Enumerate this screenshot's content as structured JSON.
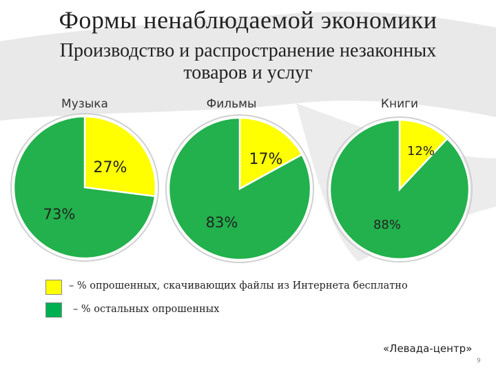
{
  "slide": {
    "title": "Формы ненаблюдаемой экономики",
    "subtitle": "Производство и распространение незаконных товаров и услуг",
    "source": "«Левада-центр»",
    "page_number": "9"
  },
  "legend": [
    {
      "label": "– % опрошенных, скачивающих файлы из Интернета бесплатно",
      "color": "#ffff00"
    },
    {
      "label": "– % остальных опрошенных",
      "color": "#00b050"
    }
  ],
  "colors": {
    "download": "#ffff00",
    "other": "#22b14c",
    "outline": "#ffffff"
  },
  "chart_data": [
    {
      "type": "pie",
      "title": "Музыка",
      "categories": [
        "скачивающие бесплатно",
        "остальные"
      ],
      "values": [
        27,
        73
      ],
      "labels": [
        "27%",
        "73%"
      ]
    },
    {
      "type": "pie",
      "title": "Фильмы",
      "categories": [
        "скачивающие бесплатно",
        "остальные"
      ],
      "values": [
        17,
        83
      ],
      "labels": [
        "17%",
        "83%"
      ]
    },
    {
      "type": "pie",
      "title": "Книги",
      "categories": [
        "скачивающие бесплатно",
        "остальные"
      ],
      "values": [
        12,
        88
      ],
      "labels": [
        "12%",
        "88%"
      ]
    }
  ]
}
